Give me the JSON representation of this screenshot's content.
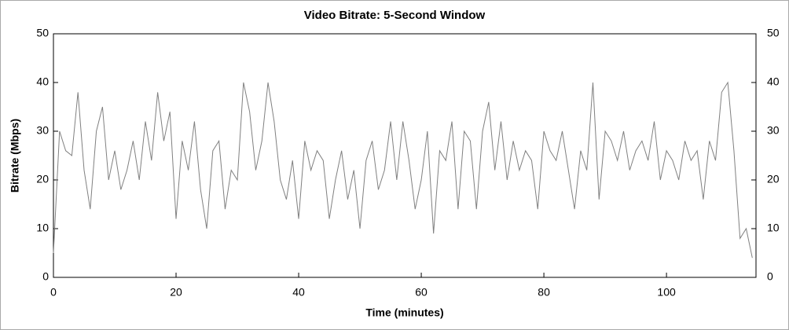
{
  "chart_data": {
    "type": "line",
    "title": "Video Bitrate: 5-Second Window",
    "xlabel": "Time (minutes)",
    "ylabel": "Bitrate (Mbps)",
    "x": [
      0,
      1,
      2,
      3,
      4,
      5,
      6,
      7,
      8,
      9,
      10,
      11,
      12,
      13,
      14,
      15,
      16,
      17,
      18,
      19,
      20,
      21,
      22,
      23,
      24,
      25,
      26,
      27,
      28,
      29,
      30,
      31,
      32,
      33,
      34,
      35,
      36,
      37,
      38,
      39,
      40,
      41,
      42,
      43,
      44,
      45,
      46,
      47,
      48,
      49,
      50,
      51,
      52,
      53,
      54,
      55,
      56,
      57,
      58,
      59,
      60,
      61,
      62,
      63,
      64,
      65,
      66,
      67,
      68,
      69,
      70,
      71,
      72,
      73,
      74,
      75,
      76,
      77,
      78,
      79,
      80,
      81,
      82,
      83,
      84,
      85,
      86,
      87,
      88,
      89,
      90,
      91,
      92,
      93,
      94,
      95,
      96,
      97,
      98,
      99,
      100,
      101,
      102,
      103,
      104,
      105,
      106,
      107,
      108,
      109,
      110,
      111,
      112,
      113,
      114
    ],
    "values": [
      5,
      30,
      26,
      25,
      38,
      22,
      14,
      30,
      35,
      20,
      26,
      18,
      22,
      28,
      20,
      32,
      24,
      38,
      28,
      34,
      12,
      28,
      22,
      32,
      18,
      10,
      26,
      28,
      14,
      22,
      20,
      40,
      34,
      22,
      28,
      40,
      32,
      20,
      16,
      24,
      12,
      28,
      22,
      26,
      24,
      12,
      20,
      26,
      16,
      22,
      10,
      24,
      28,
      18,
      22,
      32,
      20,
      32,
      24,
      14,
      20,
      30,
      9,
      26,
      24,
      32,
      14,
      30,
      28,
      14,
      30,
      36,
      22,
      32,
      20,
      28,
      22,
      26,
      24,
      14,
      30,
      26,
      24,
      30,
      22,
      14,
      26,
      22,
      40,
      16,
      30,
      28,
      24,
      30,
      22,
      26,
      28,
      24,
      32,
      20,
      26,
      24,
      20,
      28,
      24,
      26,
      16,
      28,
      24,
      38,
      40,
      26,
      8,
      10,
      4
    ],
    "color": "#808080",
    "xlim": [
      0,
      114.6
    ],
    "ylim": [
      0,
      50
    ],
    "xticks": [
      0,
      20,
      40,
      60,
      80,
      100
    ],
    "yticks": [
      0,
      10,
      20,
      30,
      40,
      50
    ],
    "y2lim": [
      0,
      50
    ],
    "y2ticks": [
      0,
      10,
      20,
      30,
      40,
      50
    ]
  }
}
